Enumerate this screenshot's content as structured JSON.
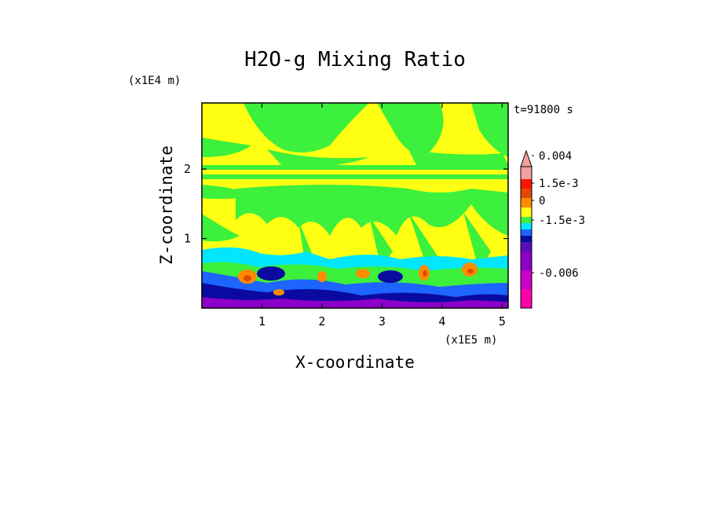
{
  "chart_data": {
    "type": "heatmap",
    "title": "H2O-g Mixing Ratio",
    "xlabel": "X-coordinate",
    "ylabel": "Z-coordinate",
    "x_unit": "(x1E5 m)",
    "y_unit": "(x1E4 m)",
    "time_label": "t=91800 s",
    "xlim": [
      0,
      5.1
    ],
    "ylim": [
      0,
      2.95
    ],
    "xticks": [
      "1",
      "2",
      "3",
      "4",
      "5"
    ],
    "xtick_values": [
      1,
      2,
      3,
      4,
      5
    ],
    "yticks": [
      "1",
      "2"
    ],
    "ytick_values": [
      1,
      2
    ],
    "colorbar": {
      "levels": [
        {
          "color": "#ff00aa"
        },
        {
          "color": "#c800c8"
        },
        {
          "color": "#8c00c8"
        },
        {
          "color": "#5a10b4"
        },
        {
          "color": "#0a0aa0"
        },
        {
          "color": "#1e64ff"
        },
        {
          "color": "#00e6ff"
        },
        {
          "color": "#3cf03c"
        },
        {
          "color": "#ffff14"
        },
        {
          "color": "#ff8c00"
        },
        {
          "color": "#e04a00"
        },
        {
          "color": "#ff1400"
        },
        {
          "color": "#f5a0a0"
        }
      ],
      "tick_labels": [
        "0.004",
        "1.5e-3",
        "0",
        "-1.5e-3",
        "-0.006"
      ],
      "extend": "max"
    },
    "field_description_colors": {
      "upper": "#ffff14",
      "upper_band": "#3cf03c",
      "lower_moist": "#00e6ff",
      "boundary": "#0a0aa0",
      "surface": "#8c00c8",
      "plumes": "#ff8c00"
    }
  }
}
